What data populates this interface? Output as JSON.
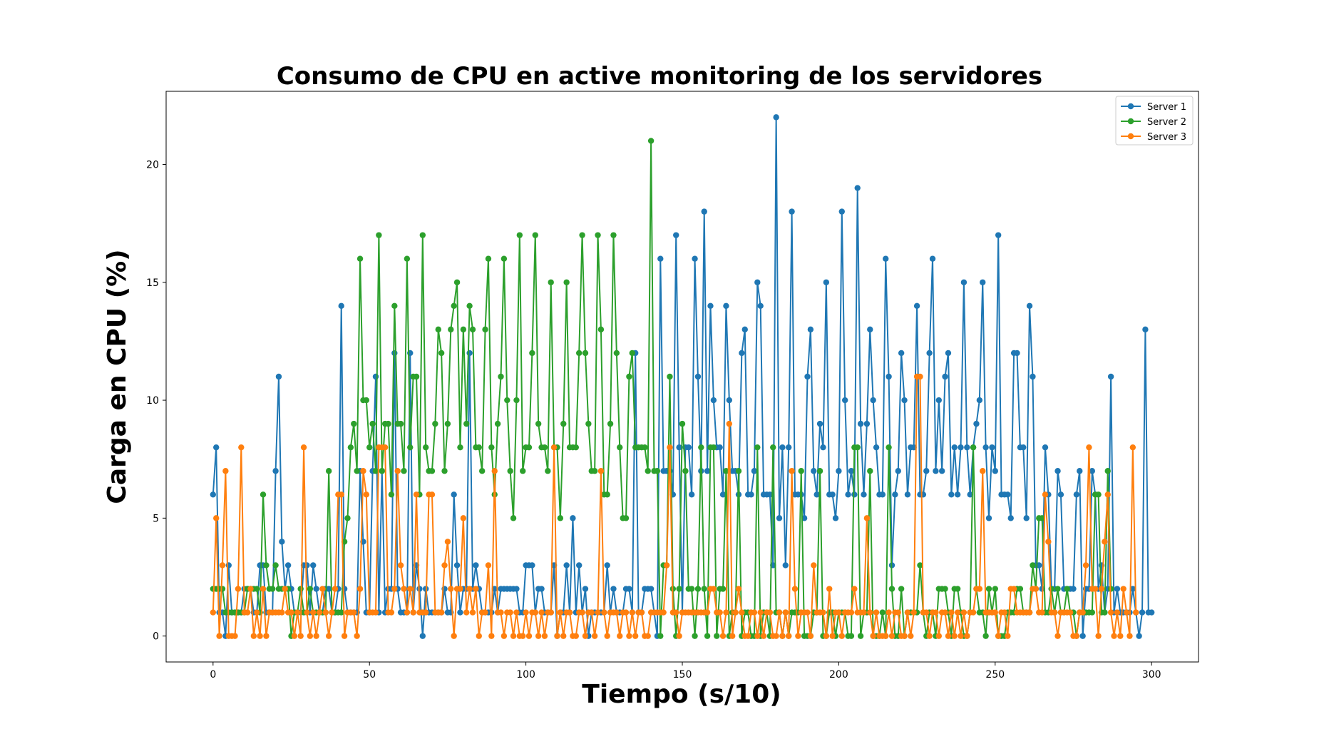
{
  "chart_data": {
    "type": "line",
    "title": "Consumo de CPU en active monitoring de los servidores",
    "xlabel": "Tiempo (s/10)",
    "ylabel": "Carga en CPU (%)",
    "xlim": [
      -15,
      315
    ],
    "ylim": [
      -1.1,
      23.1
    ],
    "xticks": [
      0,
      50,
      100,
      150,
      200,
      250,
      300
    ],
    "yticks": [
      0,
      5,
      10,
      15,
      20
    ],
    "grid": false,
    "legend_position": "top-right",
    "marker": "circle",
    "x": {
      "start": 0,
      "end": 300,
      "step": 1
    },
    "series": [
      {
        "name": "Server 1",
        "color": "#1f77b4",
        "values": [
          6,
          8,
          1,
          1,
          0,
          3,
          1,
          1,
          1,
          1,
          2,
          2,
          2,
          1,
          1,
          3,
          3,
          1,
          1,
          1,
          7,
          11,
          4,
          2,
          3,
          2,
          1,
          1,
          1,
          3,
          3,
          1,
          3,
          2,
          1,
          1,
          2,
          2,
          1,
          1,
          2,
          14,
          2,
          1,
          1,
          1,
          1,
          7,
          4,
          1,
          1,
          7,
          11,
          1,
          7,
          1,
          2,
          2,
          12,
          2,
          1,
          1,
          1,
          12,
          1,
          3,
          2,
          0,
          2,
          1,
          1,
          1,
          1,
          1,
          2,
          1,
          1,
          6,
          3,
          1,
          2,
          2,
          12,
          2,
          3,
          2,
          1,
          1,
          1,
          1,
          2,
          1,
          2,
          2,
          2,
          2,
          2,
          2,
          1,
          1,
          3,
          3,
          3,
          1,
          2,
          2,
          1,
          1,
          1,
          3,
          0,
          1,
          1,
          3,
          1,
          5,
          1,
          3,
          1,
          2,
          0,
          1,
          1,
          1,
          1,
          1,
          3,
          1,
          2,
          1,
          1,
          1,
          2,
          2,
          1,
          12,
          1,
          1,
          2,
          2,
          2,
          1,
          0,
          16,
          7,
          7,
          7,
          6,
          17,
          8,
          1,
          8,
          8,
          6,
          16,
          11,
          7,
          18,
          7,
          14,
          10,
          8,
          8,
          6,
          14,
          10,
          7,
          7,
          6,
          12,
          13,
          6,
          6,
          7,
          15,
          14,
          6,
          6,
          6,
          3,
          22,
          5,
          8,
          3,
          8,
          18,
          6,
          6,
          6,
          5,
          11,
          13,
          7,
          6,
          9,
          8,
          15,
          6,
          6,
          5,
          7,
          18,
          10,
          6,
          7,
          6,
          19,
          9,
          6,
          9,
          13,
          10,
          8,
          6,
          6,
          16,
          11,
          3,
          6,
          7,
          12,
          10,
          6,
          8,
          8,
          14,
          6,
          6,
          7,
          12,
          16,
          7,
          10,
          7,
          11,
          12,
          6,
          8,
          6,
          8,
          15,
          8,
          6,
          8,
          9,
          10,
          15,
          8,
          5,
          8,
          7,
          17,
          6,
          6,
          6,
          5,
          12,
          12,
          8,
          8,
          5,
          14,
          11,
          3,
          3,
          2,
          8,
          6,
          2,
          2,
          7,
          6,
          2,
          2,
          2,
          2,
          6,
          7,
          0,
          2,
          2,
          7,
          6,
          2,
          3,
          1,
          2,
          11,
          1,
          2,
          1,
          1,
          1,
          1,
          2,
          1,
          0,
          1,
          13,
          1,
          1
        ],
        "values_x": null
      },
      {
        "name": "Server 2",
        "color": "#2ca02c",
        "values": [
          2,
          2,
          2,
          2,
          1,
          1,
          1,
          1,
          1,
          1,
          1,
          2,
          2,
          2,
          2,
          1,
          6,
          3,
          2,
          2,
          3,
          2,
          2,
          2,
          2,
          0,
          1,
          1,
          2,
          1,
          1,
          2,
          1,
          1,
          1,
          1,
          1,
          7,
          1,
          1,
          1,
          1,
          4,
          5,
          8,
          9,
          7,
          16,
          10,
          10,
          8,
          9,
          7,
          17,
          7,
          9,
          9,
          6,
          14,
          9,
          9,
          7,
          16,
          8,
          11,
          11,
          6,
          17,
          8,
          7,
          7,
          9,
          13,
          12,
          7,
          9,
          13,
          14,
          15,
          8,
          13,
          9,
          14,
          13,
          8,
          8,
          7,
          13,
          16,
          8,
          6,
          9,
          11,
          16,
          10,
          7,
          5,
          10,
          17,
          7,
          8,
          8,
          12,
          17,
          9,
          8,
          8,
          7,
          15,
          8,
          8,
          5,
          9,
          15,
          8,
          8,
          8,
          12,
          17,
          12,
          9,
          7,
          7,
          17,
          13,
          6,
          6,
          9,
          17,
          12,
          8,
          5,
          5,
          11,
          12,
          8,
          8,
          8,
          8,
          7,
          21,
          7,
          7,
          0,
          3,
          3,
          11,
          2,
          0,
          2,
          9,
          7,
          2,
          2,
          0,
          2,
          8,
          2,
          0,
          8,
          8,
          0,
          2,
          2,
          7,
          0,
          1,
          1,
          7,
          0,
          1,
          1,
          0,
          0,
          8,
          0,
          1,
          1,
          0,
          8,
          1,
          1,
          0,
          1,
          0,
          1,
          1,
          1,
          7,
          0,
          0,
          0,
          1,
          1,
          7,
          0,
          0,
          1,
          1,
          0,
          1,
          1,
          1,
          0,
          0,
          8,
          8,
          0,
          1,
          1,
          7,
          0,
          0,
          0,
          1,
          0,
          8,
          2,
          0,
          0,
          2,
          0,
          1,
          1,
          1,
          1,
          3,
          1,
          0,
          1,
          1,
          0,
          2,
          2,
          2,
          1,
          0,
          2,
          2,
          1,
          0,
          0,
          1,
          8,
          2,
          1,
          1,
          0,
          2,
          1,
          2,
          0,
          0,
          0,
          1,
          1,
          1,
          2,
          2,
          1,
          1,
          1,
          3,
          2,
          5,
          5,
          1,
          1,
          2,
          1,
          2,
          1,
          1,
          2,
          1,
          1,
          0,
          1,
          1,
          1,
          1,
          1,
          6,
          6,
          1,
          1,
          7,
          2
        ]
      },
      {
        "name": "Server 3",
        "color": "#ff7f0e",
        "values": [
          1,
          5,
          0,
          3,
          7,
          0,
          0,
          0,
          2,
          8,
          1,
          1,
          2,
          0,
          1,
          0,
          2,
          0,
          1,
          1,
          1,
          1,
          1,
          2,
          1,
          1,
          0,
          1,
          0,
          8,
          1,
          0,
          1,
          0,
          1,
          2,
          1,
          0,
          1,
          2,
          6,
          6,
          0,
          1,
          1,
          1,
          0,
          2,
          7,
          6,
          1,
          1,
          1,
          8,
          8,
          8,
          1,
          1,
          2,
          7,
          3,
          2,
          1,
          2,
          1,
          6,
          1,
          1,
          1,
          6,
          6,
          1,
          1,
          1,
          3,
          4,
          2,
          0,
          2,
          2,
          5,
          1,
          2,
          1,
          2,
          0,
          1,
          1,
          3,
          0,
          7,
          1,
          1,
          0,
          1,
          1,
          0,
          1,
          0,
          0,
          1,
          0,
          1,
          1,
          0,
          1,
          0,
          1,
          1,
          8,
          0,
          1,
          0,
          1,
          1,
          0,
          0,
          1,
          1,
          0,
          1,
          1,
          0,
          1,
          7,
          1,
          0,
          1,
          1,
          1,
          0,
          1,
          1,
          0,
          1,
          0,
          1,
          1,
          0,
          0,
          1,
          1,
          1,
          1,
          1,
          3,
          8,
          1,
          1,
          0,
          1,
          1,
          1,
          1,
          1,
          1,
          1,
          1,
          1,
          2,
          2,
          1,
          1,
          0,
          1,
          9,
          0,
          1,
          2,
          1,
          0,
          0,
          1,
          1,
          0,
          1,
          0,
          1,
          1,
          0,
          0,
          1,
          0,
          1,
          0,
          7,
          2,
          0,
          1,
          1,
          1,
          0,
          3,
          1,
          1,
          1,
          0,
          2,
          0,
          1,
          1,
          0,
          1,
          1,
          1,
          2,
          1,
          1,
          1,
          5,
          1,
          0,
          1,
          0,
          0,
          0,
          1,
          0,
          1,
          1,
          0,
          0,
          1,
          0,
          1,
          11,
          11,
          1,
          1,
          0,
          1,
          1,
          0,
          1,
          1,
          0,
          1,
          0,
          1,
          0,
          1,
          0,
          1,
          1,
          2,
          2,
          7,
          1,
          1,
          1,
          1,
          0,
          1,
          1,
          0,
          2,
          2,
          1,
          1,
          1,
          1,
          1,
          2,
          2,
          1,
          1,
          6,
          4,
          1,
          1,
          0,
          1,
          1,
          1,
          1,
          0,
          0,
          1,
          1,
          3,
          8,
          2,
          2,
          0,
          2,
          4,
          6,
          1,
          0,
          1,
          0,
          2,
          1,
          0,
          8,
          1
        ]
      }
    ]
  }
}
